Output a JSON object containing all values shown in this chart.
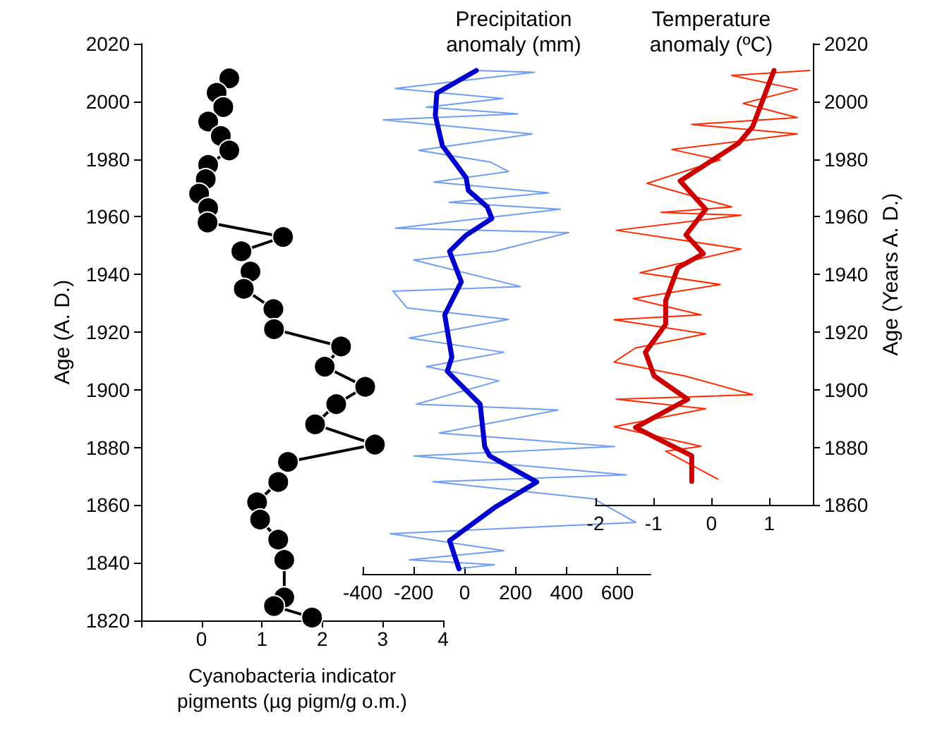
{
  "chart_data": [
    {
      "type": "line",
      "xlabel": "Cyanobacteria indicator pigments (µg pigm/g o.m.)",
      "ylabel": "Age (A. D.)",
      "x2label": "Precipitation anomaly (mm)",
      "marker": "circle",
      "xlim": [
        -1,
        4
      ],
      "xticks": [
        {
          "value": -1,
          "label": null
        },
        0,
        1,
        2,
        3,
        4
      ],
      "x2lim": [
        -400,
        730
      ],
      "x2ticks": [
        -400,
        -200,
        0,
        200,
        400,
        600
      ],
      "ylim": [
        1820,
        2020
      ],
      "yticks": [
        1820,
        1840,
        1860,
        1880,
        1900,
        1920,
        1940,
        1960,
        1980,
        2000,
        2020
      ],
      "series": [
        {
          "color": "#000000",
          "x": [
            0.46,
            0.25,
            0.36,
            0.11,
            0.32,
            0.46,
            0.11,
            0.07,
            -0.04,
            0.11,
            0.1,
            1.35,
            0.66,
            0.81,
            0.7,
            1.19,
            1.2,
            2.31,
            2.04,
            2.71,
            2.23,
            1.88,
            2.87,
            1.43,
            1.27,
            0.92,
            0.97,
            1.27,
            1.37,
            1.37,
            1.2,
            1.83
          ],
          "values": [
            2008,
            2003,
            1998,
            1993,
            1988,
            1983,
            1978,
            1973,
            1968,
            1963,
            1958,
            1953,
            1948,
            1941,
            1935,
            1928,
            1921,
            1915,
            1908,
            1901,
            1895,
            1888,
            1881,
            1875,
            1868,
            1861,
            1855,
            1848,
            1841,
            1828,
            1825,
            1821
          ]
        },
        {
          "axis": "x2",
          "marker": "none",
          "color": "#6f9ef0",
          "x": [
            46,
            274,
            -272,
            150,
            -150,
            209,
            -319,
            265,
            -180,
            100,
            172,
            -120,
            330,
            -60,
            376,
            -272,
            409,
            117,
            -200,
            219,
            -281,
            -226,
            172,
            -217,
            154,
            -150,
            135,
            -189,
            367,
            -100,
            589,
            -198,
            635,
            -124,
            506,
            672,
            -291,
            154,
            -217,
            117,
            -20
          ],
          "values": [
            2010.7,
            2010.1,
            2004.5,
            2001,
            1998,
            1995.7,
            1993.6,
            1988.7,
            1983,
            1979,
            1975.7,
            1972,
            1968.3,
            1965,
            1962.6,
            1956,
            1954.5,
            1948,
            1945,
            1935.8,
            1934.2,
            1928.4,
            1924.4,
            1917.9,
            1913,
            1908,
            1903.1,
            1895,
            1893,
            1885,
            1880.3,
            1877,
            1870.5,
            1868.1,
            1862.2,
            1854,
            1850.1,
            1844.2,
            1841,
            1839.3,
            1838
          ]
        },
        {
          "axis": "x2",
          "marker": "none",
          "color": "#0000cc",
          "x": [
            46,
            -109,
            -115,
            -87,
            6,
            15,
            89,
            107,
            6,
            -59,
            -13,
            -78,
            -50,
            -68,
            61,
            79,
            98,
            283,
            117,
            -59,
            -22
          ],
          "values": [
            2010.7,
            2002.9,
            1995.2,
            1984.6,
            1973.5,
            1969.1,
            1963.4,
            1959.4,
            1953.6,
            1948,
            1937.4,
            1926,
            1911.3,
            1906.4,
            1895,
            1880.3,
            1877.1,
            1868,
            1859.1,
            1847.7,
            1837.9
          ]
        }
      ]
    },
    {
      "type": "line",
      "title": "Temperature anomaly (ºC)",
      "ylabel": "Age (Years A. D.)",
      "marker": "none",
      "xlim": [
        -2,
        1.75
      ],
      "xticks": [
        -2,
        -1,
        0,
        1
      ],
      "ylim": [
        1860,
        2020
      ],
      "yticks": [
        1860,
        1880,
        1900,
        1920,
        1940,
        1960,
        1980,
        2000,
        2020
      ],
      "series": [
        {
          "color": "#ff2a00",
          "x": [
            1.69,
            0.35,
            1.48,
            0.55,
            1.48,
            -0.34,
            1.48,
            -0.68,
            0.15,
            -1.11,
            0.35,
            -0.87,
            0.51,
            -1.64,
            0.51,
            -1.23,
            0.15,
            -1.35,
            -0.18,
            -1.68,
            -0.1,
            -1.31,
            -1.68,
            -0.46,
            0.71,
            -1.64,
            -0.1,
            -1.68,
            -0.18,
            -0.79,
            0.11
          ],
          "values": [
            2010.7,
            2009,
            2004.2,
            1999.3,
            1994.4,
            1992,
            1988.7,
            1983.3,
            1979.7,
            1971.6,
            1963.4,
            1961.5,
            1960.5,
            1955.3,
            1948.8,
            1940.6,
            1936.5,
            1931.6,
            1926,
            1924.3,
            1919.4,
            1914.5,
            1909.6,
            1904.8,
            1898.3,
            1896.7,
            1893.4,
            1887.2,
            1880.4,
            1878.7,
            1869
          ]
        },
        {
          "color": "#cc0000",
          "x": [
            1.08,
            0.71,
            0.47,
            -0.1,
            -0.54,
            -0.1,
            -0.44,
            -0.14,
            -0.58,
            -0.79,
            -0.79,
            -1.14,
            -0.99,
            -0.41,
            -1.31,
            -0.67,
            -0.34,
            -0.34
          ],
          "values": [
            2010.7,
            1991.2,
            1985.5,
            1978.1,
            1972.4,
            1962.6,
            1953.7,
            1947.2,
            1942.3,
            1930.9,
            1922.7,
            1913,
            1904.8,
            1896.7,
            1886.9,
            1880.4,
            1877.1,
            1868.2
          ]
        }
      ]
    }
  ]
}
